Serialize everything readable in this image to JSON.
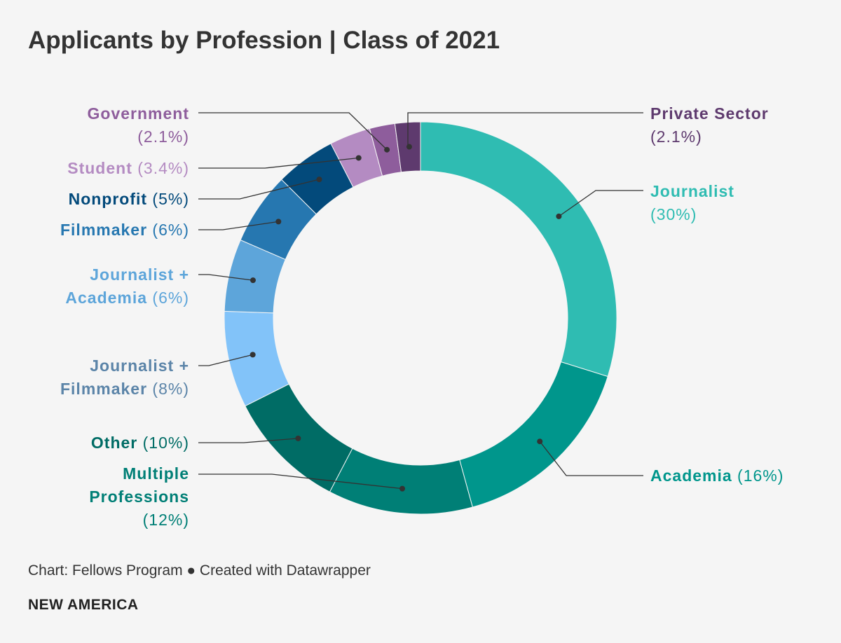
{
  "chart_data": {
    "type": "pie",
    "variant": "donut",
    "title": "Applicants by Profession | Class of 2021",
    "slices": [
      {
        "name": "Journalist",
        "value": 30,
        "value_label": "(30%)",
        "color": "#2fbcb2"
      },
      {
        "name": "Academia",
        "value": 16,
        "value_label": "(16%)",
        "color": "#00968c"
      },
      {
        "name": "Multiple Professions",
        "value": 12,
        "value_label": "(12%)",
        "color": "#007f76"
      },
      {
        "name": "Other",
        "value": 10,
        "value_label": "(10%)",
        "color": "#006c65"
      },
      {
        "name": "Journalist + Filmmaker",
        "value": 8,
        "value_label": "(8%)",
        "color": "#82c3f9"
      },
      {
        "name": "Journalist + Academia",
        "value": 6,
        "value_label": "(6%)",
        "color": "#5da5da"
      },
      {
        "name": "Filmmaker",
        "value": 6,
        "value_label": "(6%)",
        "color": "#2677b0"
      },
      {
        "name": "Nonprofit",
        "value": 5,
        "value_label": "(5%)",
        "color": "#034a7b"
      },
      {
        "name": "Student",
        "value": 3.4,
        "value_label": "(3.4%)",
        "color": "#b48bc2"
      },
      {
        "name": "Government",
        "value": 2.1,
        "value_label": "(2.1%)",
        "color": "#8e5d9c"
      },
      {
        "name": "Private Sector",
        "value": 2.1,
        "value_label": "(2.1%)",
        "color": "#5e3a6e"
      }
    ]
  },
  "labels": [
    {
      "lines": [
        {
          "name": "Private Sector",
          "pct": ""
        },
        {
          "name": "",
          "pct": "(2.1%)"
        }
      ],
      "color": "#5e3a6e"
    },
    {
      "lines": [
        {
          "name": "Journalist",
          "pct": ""
        },
        {
          "name": "",
          "pct": "(30%)"
        }
      ],
      "color": "#2fbcb2"
    },
    {
      "lines": [
        {
          "name": "Academia",
          "pct": " (16%)"
        }
      ],
      "color": "#00968c"
    },
    {
      "lines": [
        {
          "name": "Government",
          "pct": ""
        },
        {
          "name": "",
          "pct": "(2.1%)"
        }
      ],
      "color": "#8e5d9c"
    },
    {
      "lines": [
        {
          "name": "Student",
          "pct": " (3.4%)"
        }
      ],
      "color": "#b48bc2"
    },
    {
      "lines": [
        {
          "name": "Nonprofit",
          "pct": " (5%)"
        }
      ],
      "color": "#034a7b"
    },
    {
      "lines": [
        {
          "name": "Filmmaker",
          "pct": " (6%)"
        }
      ],
      "color": "#2677b0"
    },
    {
      "lines": [
        {
          "name": "Journalist +",
          "pct": ""
        },
        {
          "name": "Academia",
          "pct": " (6%)"
        }
      ],
      "color": "#5da5da"
    },
    {
      "lines": [
        {
          "name": "Journalist +",
          "pct": ""
        },
        {
          "name": "Filmmaker",
          "pct": " (8%)"
        }
      ],
      "color": "#5b84a8"
    },
    {
      "lines": [
        {
          "name": "Other",
          "pct": " (10%)"
        }
      ],
      "color": "#006c65"
    },
    {
      "lines": [
        {
          "name": "Multiple",
          "pct": ""
        },
        {
          "name": "Professions",
          "pct": ""
        },
        {
          "name": "",
          "pct": "(12%)"
        }
      ],
      "color": "#007f76"
    }
  ],
  "footer": {
    "source": "Chart: Fellows Program ● Created with Datawrapper",
    "brand": "NEW AMERICA"
  }
}
